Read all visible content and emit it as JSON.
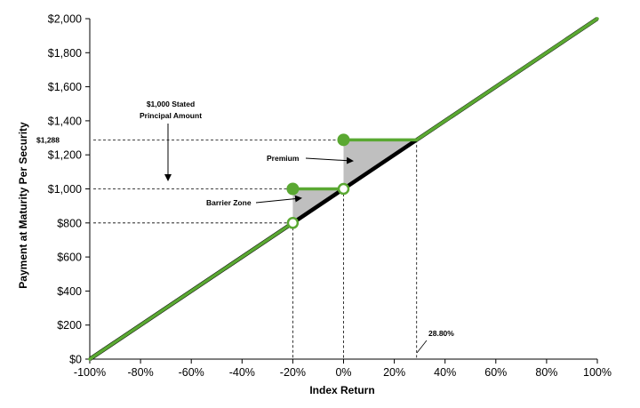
{
  "chart_data": {
    "type": "line",
    "title": "",
    "xlabel": "Index Return",
    "ylabel": "Payment at Maturity Per Security",
    "xlim": [
      -100,
      100
    ],
    "ylim": [
      0,
      2000
    ],
    "x_ticks": [
      -100,
      -80,
      -60,
      -40,
      -20,
      0,
      20,
      40,
      60,
      80,
      100
    ],
    "x_tick_labels": [
      "-100%",
      "-80%",
      "-60%",
      "-40%",
      "-20%",
      "0%",
      "20%",
      "40%",
      "60%",
      "80%",
      "100%"
    ],
    "y_ticks": [
      0,
      200,
      400,
      600,
      800,
      1000,
      1200,
      1400,
      1600,
      1800,
      2000
    ],
    "y_tick_labels": [
      "$0",
      "$200",
      "$400",
      "$600",
      "$800",
      "$1,000",
      "$1,200",
      "$1,400",
      "$1,600",
      "$1,800",
      "$2,000"
    ],
    "extra_y_tick_label": "$1,288",
    "extra_y_tick_value": 1288,
    "grid": false,
    "series": [
      {
        "color": "#000000",
        "x": [
          -100,
          100
        ],
        "y": [
          0,
          2000
        ]
      },
      {
        "color": "#5aa832",
        "x": [
          -100,
          -20,
          -20,
          0,
          0,
          28.8,
          100
        ],
        "y": [
          0,
          800,
          1000,
          1000,
          1288,
          1288,
          2000
        ]
      }
    ],
    "open_points": [
      {
        "x": -20,
        "y": 800
      },
      {
        "x": 0,
        "y": 1000
      }
    ],
    "filled_points": [
      {
        "x": -20,
        "y": 1000
      },
      {
        "x": 0,
        "y": 1288
      }
    ],
    "shaded_regions": [
      {
        "name": "barrier",
        "points": [
          [
            -20,
            800
          ],
          [
            -20,
            1000
          ],
          [
            0,
            1000
          ]
        ]
      },
      {
        "name": "premium",
        "points": [
          [
            0,
            1000
          ],
          [
            0,
            1288
          ],
          [
            28.8,
            1288
          ]
        ]
      }
    ],
    "annotations": {
      "stated_principal": [
        "$1,000 Stated",
        "Principal Amount"
      ],
      "premium": "Premium",
      "barrier_zone": "Barrier Zone",
      "cap_pct": "28.80%"
    },
    "colors": {
      "green": "#5aa832",
      "black": "#000000",
      "shade": "#bfbfbf"
    }
  }
}
